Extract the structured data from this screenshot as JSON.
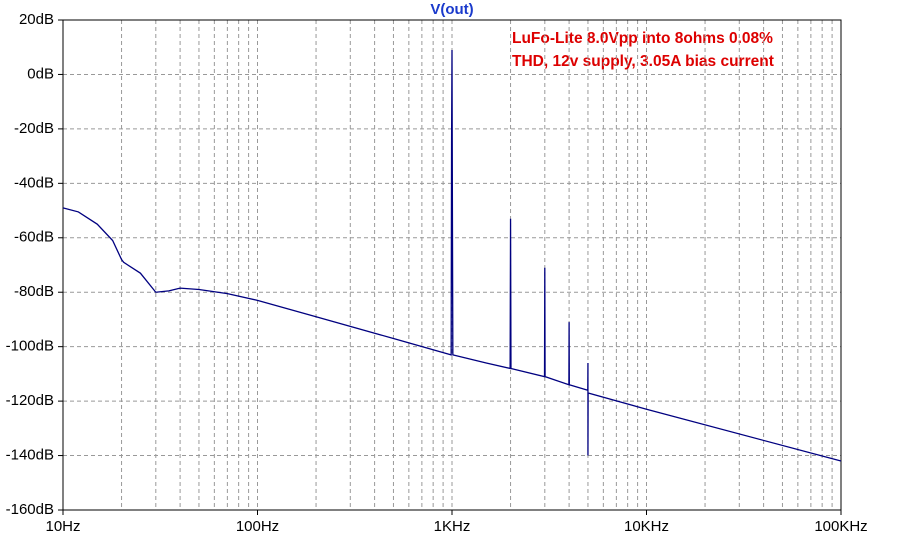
{
  "chart_data": {
    "type": "line",
    "title": "V(out)",
    "annotation": [
      "LuFo-Lite  8.0Vpp into 8ohms 0.08%",
      "THD, 12v supply, 3.05A bias current"
    ],
    "x": [
      10,
      12,
      15,
      18,
      20,
      20.5,
      25,
      30,
      35,
      40,
      50,
      70,
      100,
      200,
      500,
      990,
      995,
      1000,
      1005,
      1010,
      1500,
      1990,
      2000,
      2010,
      2990,
      3000,
      3010,
      3990,
      4000,
      4010,
      4990,
      5000,
      5000,
      5010,
      10000,
      100000
    ],
    "series": [
      {
        "name": "V(out)",
        "color": "#000080",
        "values": [
          -49,
          -50.5,
          -55,
          -61,
          -68,
          -69,
          -73,
          -80,
          -79.5,
          -78.5,
          -79,
          -80.5,
          -83,
          -89,
          -97,
          -103,
          -25,
          9,
          -52,
          -103,
          -106,
          -108,
          -53,
          -108,
          -111,
          -71,
          -111,
          -114,
          -91,
          -114,
          -116,
          -106,
          -140,
          -117,
          -123,
          -142
        ]
      }
    ],
    "xlog": true,
    "xlim": [
      10,
      100000
    ],
    "xticks": [
      {
        "value": 10,
        "label": "10Hz"
      },
      {
        "value": 100,
        "label": "100Hz"
      },
      {
        "value": 1000,
        "label": "1KHz"
      },
      {
        "value": 10000,
        "label": "10KHz"
      },
      {
        "value": 100000,
        "label": "100KHz"
      }
    ],
    "ylim": [
      -160,
      20
    ],
    "yticks": [
      {
        "value": 20,
        "label": "20dB"
      },
      {
        "value": 0,
        "label": "0dB"
      },
      {
        "value": -20,
        "label": "-20dB"
      },
      {
        "value": -40,
        "label": "-40dB"
      },
      {
        "value": -60,
        "label": "-60dB"
      },
      {
        "value": -80,
        "label": "-80dB"
      },
      {
        "value": -100,
        "label": "-100dB"
      },
      {
        "value": -120,
        "label": "-120dB"
      },
      {
        "value": -140,
        "label": "-140dB"
      },
      {
        "value": -160,
        "label": "-160dB"
      }
    ],
    "grid": true
  }
}
